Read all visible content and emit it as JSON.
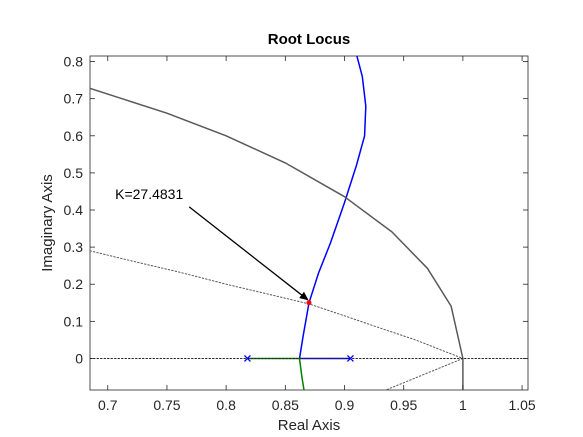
{
  "chart_data": {
    "type": "line",
    "title": "Root Locus",
    "xlabel": "Real Axis",
    "ylabel": "Imaginary Axis",
    "xlim": [
      0.685,
      1.055
    ],
    "ylim": [
      -0.085,
      0.815
    ],
    "xticks": [
      0.7,
      0.75,
      0.8,
      0.85,
      0.9,
      0.95,
      1,
      1.05
    ],
    "xtick_labels": [
      "0.7",
      "0.75",
      "0.8",
      "0.85",
      "0.9",
      "0.95",
      "1",
      "1.05"
    ],
    "yticks": [
      0,
      0.1,
      0.2,
      0.3,
      0.4,
      0.5,
      0.6,
      0.7,
      0.8
    ],
    "ytick_labels": [
      "0",
      "0.1",
      "0.2",
      "0.3",
      "0.4",
      "0.5",
      "0.6",
      "0.7",
      "0.8"
    ],
    "grid": false,
    "colors": {
      "blue_branch": "#0000ff",
      "green_branch": "#008000",
      "unit_circle": "#595959",
      "damping_lines": "#595959",
      "highlight_point": "#ff0000",
      "axis": "#262626"
    },
    "series": [
      {
        "color": "#0000ff",
        "x": [
          0.905,
          0.862
        ],
        "y": [
          0,
          0
        ]
      },
      {
        "color": "#0000ff",
        "x": [
          0.862,
          0.865,
          0.87,
          0.878,
          0.888,
          0.9,
          0.91,
          0.917,
          0.918,
          0.915,
          0.91
        ],
        "y": [
          0,
          0.06,
          0.15,
          0.23,
          0.31,
          0.42,
          0.52,
          0.6,
          0.68,
          0.76,
          0.82
        ]
      },
      {
        "color": "#008000",
        "x": [
          0.818,
          0.862
        ],
        "y": [
          0,
          0
        ]
      },
      {
        "color": "#008000",
        "x": [
          0.862,
          0.864,
          0.866
        ],
        "y": [
          0,
          -0.05,
          -0.09
        ]
      },
      {
        "color": "#595959",
        "x": [
          0.685,
          0.75,
          0.8,
          0.85,
          0.9,
          0.94,
          0.97,
          0.99,
          1.0,
          1.0
        ],
        "y": [
          0.728,
          0.661,
          0.6,
          0.527,
          0.436,
          0.341,
          0.243,
          0.141,
          0.0,
          -0.09
        ]
      },
      {
        "color": "#595959",
        "dashed": true,
        "x": [
          0.685,
          0.72,
          0.76,
          0.8,
          0.84,
          0.87,
          0.9,
          0.93,
          0.96,
          1.0
        ],
        "y": [
          0.29,
          0.263,
          0.233,
          0.2,
          0.17,
          0.147,
          0.115,
          0.082,
          0.05,
          0.0
        ]
      },
      {
        "color": "#595959",
        "dashed": true,
        "x": [
          1.0,
          0.935
        ],
        "y": [
          0.0,
          -0.085
        ]
      },
      {
        "color": "#262626",
        "dashed": true,
        "x": [
          0.685,
          1.055
        ],
        "y": [
          0,
          0
        ]
      }
    ],
    "markers": [
      {
        "shape": "x",
        "color": "#0000ff",
        "x": 0.905,
        "y": 0
      },
      {
        "shape": "x",
        "color": "#0000ff",
        "x": 0.818,
        "y": 0
      }
    ],
    "highlight": {
      "x": 0.87,
      "y": 0.15,
      "color": "#ff0000"
    },
    "annotations": [
      {
        "text": "K=27.4831",
        "text_x": 0.735,
        "text_y": 0.43,
        "arrow_to_x": 0.869,
        "arrow_to_y": 0.158
      }
    ]
  }
}
